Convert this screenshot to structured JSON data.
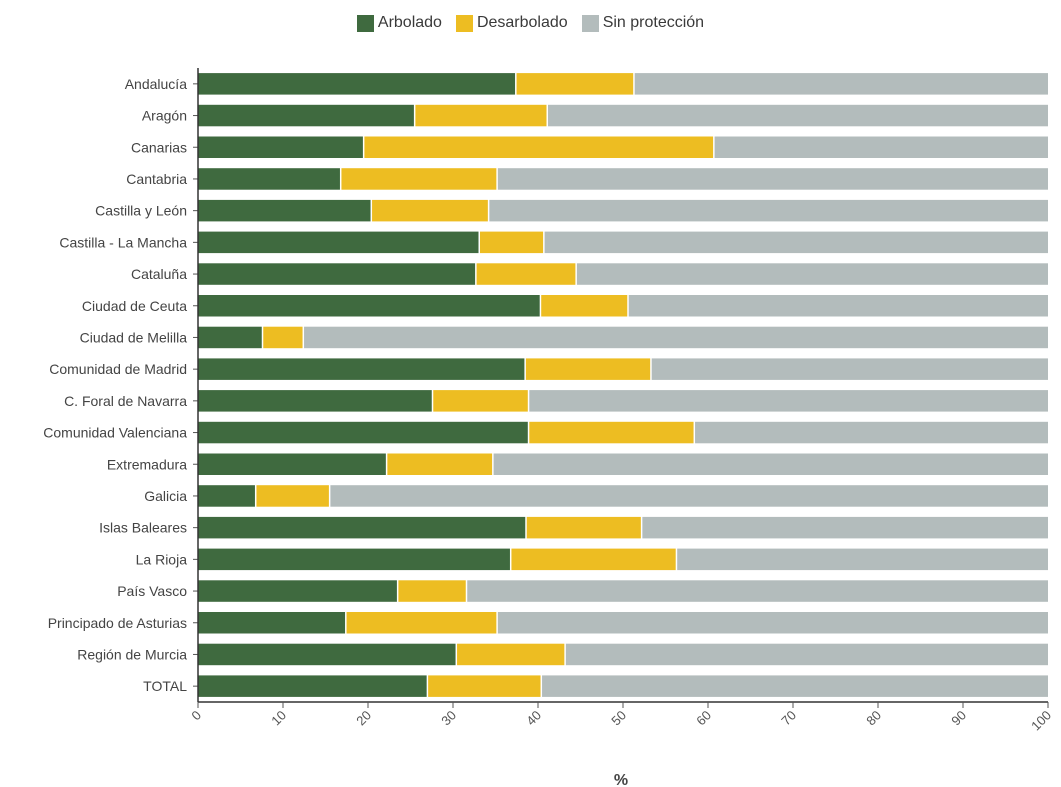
{
  "chart_data": {
    "type": "bar",
    "orientation": "horizontal",
    "stacked": true,
    "categories": [
      "Andalucía",
      "Aragón",
      "Canarias",
      "Cantabria",
      "Castilla y León",
      "Castilla - La Mancha",
      "Cataluña",
      "Ciudad de Ceuta",
      "Ciudad de Melilla",
      "Comunidad de Madrid",
      "C. Foral de Navarra",
      "Comunidad Valenciana",
      "Extremadura",
      "Galicia",
      "Islas Baleares",
      "La Rioja",
      "País Vasco",
      "Principado de Asturias",
      "Región de Murcia",
      "TOTAL"
    ],
    "series": [
      {
        "name": "Arbolado",
        "color": "#3f6a3f",
        "values": [
          37.3,
          25.4,
          19.4,
          16.7,
          20.3,
          33.0,
          32.6,
          40.2,
          7.5,
          38.4,
          27.5,
          38.8,
          22.1,
          6.7,
          38.5,
          36.7,
          23.4,
          17.3,
          30.3,
          26.9
        ]
      },
      {
        "name": "Desarbolado",
        "color": "#edbd22",
        "values": [
          13.9,
          15.6,
          41.2,
          18.4,
          13.8,
          7.6,
          11.8,
          10.3,
          4.8,
          14.8,
          11.3,
          19.5,
          12.5,
          8.7,
          13.6,
          19.5,
          8.1,
          17.8,
          12.8,
          13.4
        ]
      },
      {
        "name": "Sin protección",
        "color": "#b3bcbc",
        "values": [
          48.8,
          59.0,
          39.4,
          64.9,
          65.9,
          59.4,
          55.6,
          49.5,
          87.7,
          46.8,
          61.2,
          41.7,
          65.4,
          84.6,
          47.9,
          43.8,
          68.5,
          64.9,
          56.9,
          59.7
        ]
      }
    ],
    "xlabel": "%",
    "ylabel": "",
    "xlim": [
      0,
      100
    ],
    "xticks": [
      "0",
      "10",
      "20",
      "30",
      "40",
      "50",
      "60",
      "70",
      "80",
      "90",
      "100"
    ],
    "legend": "top-center",
    "grid": false
  }
}
